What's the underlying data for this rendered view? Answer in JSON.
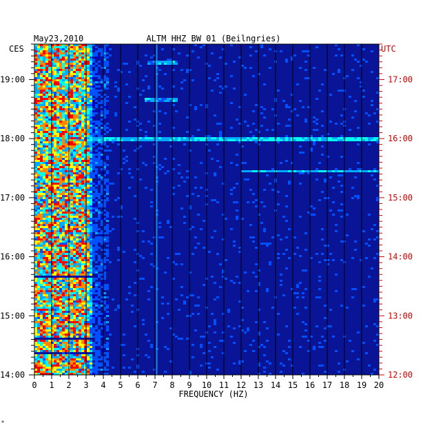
{
  "header": {
    "date": "May23,2010",
    "station": "ALTM HHZ BW 01 (Beilngries)"
  },
  "chart_data": {
    "type": "heatmap",
    "title": "ALTM HHZ BW 01 (Beilngries)",
    "xlabel": "FREQUENCY (HZ)",
    "xlim": [
      0,
      20
    ],
    "x_ticks": [
      "0",
      "1",
      "2",
      "3",
      "4",
      "5",
      "6",
      "7",
      "8",
      "9",
      "10",
      "11",
      "12",
      "13",
      "14",
      "15",
      "16",
      "17",
      "18",
      "19",
      "20"
    ],
    "left_axis": {
      "label": "CES",
      "ticks": [
        {
          "hour": 14,
          "label": "14:00"
        },
        {
          "hour": 15,
          "label": "15:00"
        },
        {
          "hour": 16,
          "label": "16:00"
        },
        {
          "hour": 17,
          "label": "17:00"
        },
        {
          "hour": 18,
          "label": "18:00"
        },
        {
          "hour": 19,
          "label": "19:00"
        }
      ]
    },
    "right_axis": {
      "label": "UTC",
      "ticks": [
        {
          "hour": 14,
          "label": "12:00"
        },
        {
          "hour": 15,
          "label": "13:00"
        },
        {
          "hour": 16,
          "label": "14:00"
        },
        {
          "hour": 17,
          "label": "15:00"
        },
        {
          "hour": 18,
          "label": "16:00"
        },
        {
          "hour": 19,
          "label": "17:00"
        }
      ]
    },
    "time_range_ces": [
      14.0,
      19.6
    ],
    "colors": {
      "background": "#0a1496",
      "grid": "#000000",
      "utc_axis": "#cc0000",
      "scale": [
        "#0000cc",
        "#0050ff",
        "#00aaff",
        "#00ffee",
        "#ffff00",
        "#ff8800",
        "#ff0000"
      ]
    },
    "features": [
      {
        "type": "band",
        "freq_from": 0,
        "freq_to": 3.5,
        "intensity": "high"
      },
      {
        "type": "line",
        "freq": 7.1,
        "intensity": "medium"
      },
      {
        "type": "event",
        "time": 18.0,
        "freq_from": 3.0,
        "freq_to": 20.0,
        "intensity": "medium"
      },
      {
        "type": "event",
        "time": 17.47,
        "freq_from": 12.0,
        "freq_to": 20.0,
        "intensity": "medium"
      },
      {
        "type": "event",
        "time": 19.3,
        "freq_from": 6.5,
        "freq_to": 8.3,
        "intensity": "low"
      },
      {
        "type": "event",
        "time": 18.68,
        "freq_from": 6.3,
        "freq_to": 8.3,
        "intensity": "low"
      }
    ]
  },
  "footer": {
    "mark": "*"
  }
}
